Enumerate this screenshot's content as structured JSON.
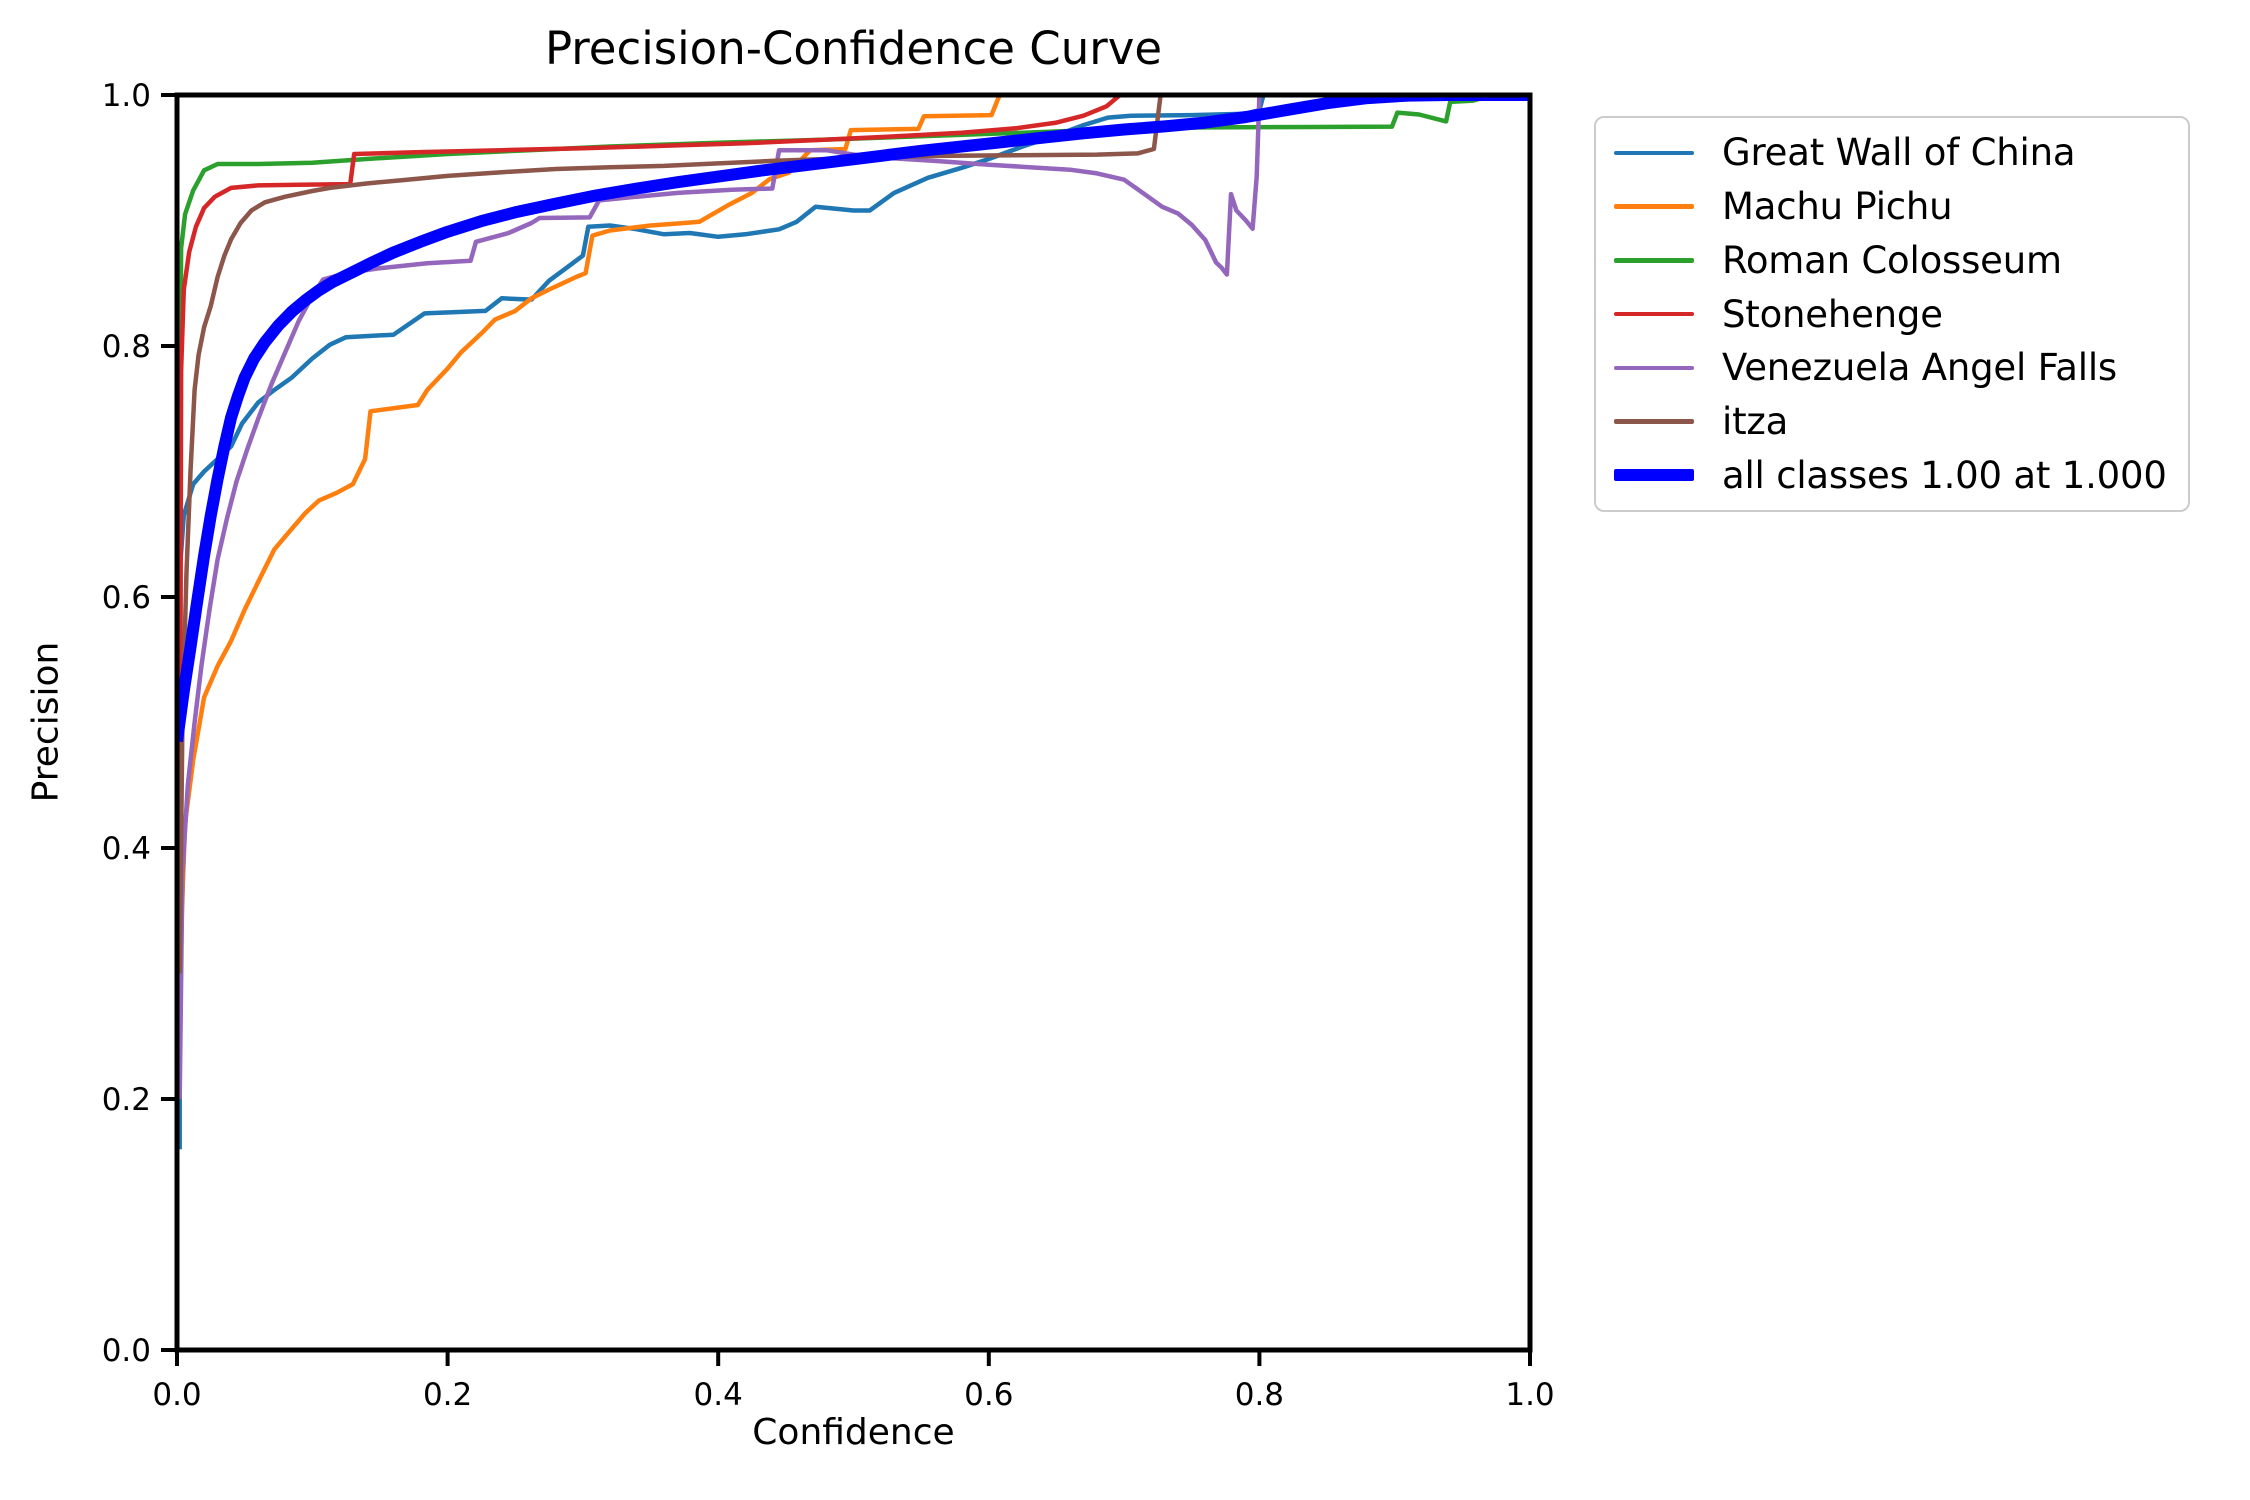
{
  "chart_data": {
    "type": "line",
    "title": "Precision-Confidence Curve",
    "xlabel": "Confidence",
    "ylabel": "Precision",
    "xlim": [
      0.0,
      1.0
    ],
    "ylim": [
      0.0,
      1.0
    ],
    "xticks": {
      "values": [
        0.0,
        0.2,
        0.4,
        0.6,
        0.8,
        1.0
      ],
      "labels": [
        "0.0",
        "0.2",
        "0.4",
        "0.6",
        "0.8",
        "1.0"
      ]
    },
    "yticks": {
      "values": [
        0.0,
        0.2,
        0.4,
        0.6,
        0.8,
        1.0
      ],
      "labels": [
        "0.0",
        "0.2",
        "0.4",
        "0.6",
        "0.8",
        "1.0"
      ]
    },
    "grid": false,
    "legend_position": "outside-upper-right",
    "axis_color": "#000000",
    "series": [
      {
        "name": "Great Wall of China",
        "color": "#1f77b4",
        "linewidth": 4.5,
        "thick": false,
        "points": [
          [
            0.002,
            0.16
          ],
          [
            0.002,
            0.62
          ],
          [
            0.005,
            0.665
          ],
          [
            0.012,
            0.69
          ],
          [
            0.02,
            0.7
          ],
          [
            0.03,
            0.71
          ],
          [
            0.04,
            0.72
          ],
          [
            0.048,
            0.738
          ],
          [
            0.06,
            0.755
          ],
          [
            0.072,
            0.765
          ],
          [
            0.085,
            0.775
          ],
          [
            0.1,
            0.79
          ],
          [
            0.113,
            0.801
          ],
          [
            0.125,
            0.807
          ],
          [
            0.16,
            0.809
          ],
          [
            0.183,
            0.826
          ],
          [
            0.228,
            0.828
          ],
          [
            0.24,
            0.838
          ],
          [
            0.262,
            0.837
          ],
          [
            0.275,
            0.852
          ],
          [
            0.29,
            0.864
          ],
          [
            0.3,
            0.872
          ],
          [
            0.304,
            0.895
          ],
          [
            0.32,
            0.896
          ],
          [
            0.34,
            0.893
          ],
          [
            0.36,
            0.889
          ],
          [
            0.379,
            0.89
          ],
          [
            0.4,
            0.887
          ],
          [
            0.42,
            0.889
          ],
          [
            0.445,
            0.893
          ],
          [
            0.458,
            0.899
          ],
          [
            0.472,
            0.911
          ],
          [
            0.5,
            0.908
          ],
          [
            0.512,
            0.908
          ],
          [
            0.53,
            0.922
          ],
          [
            0.555,
            0.934
          ],
          [
            0.58,
            0.942
          ],
          [
            0.6,
            0.949
          ],
          [
            0.625,
            0.959
          ],
          [
            0.65,
            0.968
          ],
          [
            0.67,
            0.976
          ],
          [
            0.688,
            0.982
          ],
          [
            0.705,
            0.9835
          ],
          [
            0.75,
            0.984
          ],
          [
            0.79,
            0.985
          ],
          [
            0.8,
            0.988
          ],
          [
            0.803,
            1.0
          ]
        ]
      },
      {
        "name": "Machu Pichu",
        "color": "#ff7f0e",
        "linewidth": 4.5,
        "thick": false,
        "points": [
          [
            0.002,
            0.3
          ],
          [
            0.006,
            0.42
          ],
          [
            0.012,
            0.47
          ],
          [
            0.02,
            0.52
          ],
          [
            0.03,
            0.545
          ],
          [
            0.04,
            0.565
          ],
          [
            0.05,
            0.59
          ],
          [
            0.06,
            0.612
          ],
          [
            0.072,
            0.638
          ],
          [
            0.083,
            0.652
          ],
          [
            0.095,
            0.667
          ],
          [
            0.105,
            0.677
          ],
          [
            0.118,
            0.683
          ],
          [
            0.13,
            0.69
          ],
          [
            0.139,
            0.71
          ],
          [
            0.143,
            0.748
          ],
          [
            0.178,
            0.753
          ],
          [
            0.185,
            0.765
          ],
          [
            0.2,
            0.782
          ],
          [
            0.21,
            0.795
          ],
          [
            0.225,
            0.81
          ],
          [
            0.235,
            0.821
          ],
          [
            0.25,
            0.828
          ],
          [
            0.262,
            0.838
          ],
          [
            0.275,
            0.845
          ],
          [
            0.285,
            0.85
          ],
          [
            0.295,
            0.855
          ],
          [
            0.302,
            0.858
          ],
          [
            0.307,
            0.888
          ],
          [
            0.32,
            0.892
          ],
          [
            0.35,
            0.896
          ],
          [
            0.375,
            0.898
          ],
          [
            0.386,
            0.899
          ],
          [
            0.407,
            0.912
          ],
          [
            0.425,
            0.922
          ],
          [
            0.438,
            0.933
          ],
          [
            0.452,
            0.938
          ],
          [
            0.468,
            0.956
          ],
          [
            0.494,
            0.957
          ],
          [
            0.498,
            0.972
          ],
          [
            0.548,
            0.973
          ],
          [
            0.552,
            0.983
          ],
          [
            0.602,
            0.984
          ],
          [
            0.608,
            1.0
          ],
          [
            0.67,
            1.0
          ]
        ]
      },
      {
        "name": "Roman Colosseum",
        "color": "#2ca02c",
        "linewidth": 4.5,
        "thick": false,
        "points": [
          [
            0.002,
            0.7
          ],
          [
            0.003,
            0.878
          ],
          [
            0.006,
            0.905
          ],
          [
            0.012,
            0.924
          ],
          [
            0.02,
            0.94
          ],
          [
            0.03,
            0.945
          ],
          [
            0.06,
            0.945
          ],
          [
            0.1,
            0.946
          ],
          [
            0.14,
            0.949
          ],
          [
            0.2,
            0.953
          ],
          [
            0.26,
            0.956
          ],
          [
            0.32,
            0.959
          ],
          [
            0.4,
            0.962
          ],
          [
            0.48,
            0.9645
          ],
          [
            0.56,
            0.9675
          ],
          [
            0.64,
            0.9705
          ],
          [
            0.7,
            0.973
          ],
          [
            0.76,
            0.9742
          ],
          [
            0.84,
            0.9745
          ],
          [
            0.898,
            0.9748
          ],
          [
            0.902,
            0.986
          ],
          [
            0.918,
            0.9845
          ],
          [
            0.938,
            0.979
          ],
          [
            0.941,
            0.9945
          ],
          [
            0.958,
            0.9955
          ],
          [
            0.972,
            1.0
          ],
          [
            0.99,
            1.0
          ]
        ]
      },
      {
        "name": "Stonehenge",
        "color": "#d62728",
        "linewidth": 4.5,
        "thick": false,
        "points": [
          [
            0.002,
            0.25
          ],
          [
            0.003,
            0.78
          ],
          [
            0.005,
            0.845
          ],
          [
            0.009,
            0.875
          ],
          [
            0.014,
            0.895
          ],
          [
            0.02,
            0.91
          ],
          [
            0.028,
            0.919
          ],
          [
            0.04,
            0.926
          ],
          [
            0.06,
            0.928
          ],
          [
            0.09,
            0.9285
          ],
          [
            0.128,
            0.929
          ],
          [
            0.131,
            0.953
          ],
          [
            0.18,
            0.9545
          ],
          [
            0.24,
            0.956
          ],
          [
            0.3,
            0.9575
          ],
          [
            0.36,
            0.9595
          ],
          [
            0.42,
            0.9615
          ],
          [
            0.48,
            0.9645
          ],
          [
            0.53,
            0.967
          ],
          [
            0.58,
            0.97
          ],
          [
            0.62,
            0.9735
          ],
          [
            0.65,
            0.978
          ],
          [
            0.67,
            0.9835
          ],
          [
            0.687,
            0.991
          ],
          [
            0.697,
            1.0
          ],
          [
            0.735,
            1.0
          ]
        ]
      },
      {
        "name": "Venezuela Angel Falls",
        "color": "#9467bd",
        "linewidth": 4.5,
        "thick": false,
        "points": [
          [
            0.002,
            0.2
          ],
          [
            0.004,
            0.38
          ],
          [
            0.008,
            0.45
          ],
          [
            0.013,
            0.5
          ],
          [
            0.018,
            0.545
          ],
          [
            0.024,
            0.59
          ],
          [
            0.03,
            0.63
          ],
          [
            0.037,
            0.663
          ],
          [
            0.044,
            0.692
          ],
          [
            0.052,
            0.718
          ],
          [
            0.06,
            0.742
          ],
          [
            0.07,
            0.77
          ],
          [
            0.08,
            0.795
          ],
          [
            0.09,
            0.82
          ],
          [
            0.1,
            0.84
          ],
          [
            0.108,
            0.853
          ],
          [
            0.125,
            0.858
          ],
          [
            0.15,
            0.862
          ],
          [
            0.185,
            0.866
          ],
          [
            0.217,
            0.868
          ],
          [
            0.221,
            0.883
          ],
          [
            0.245,
            0.89
          ],
          [
            0.262,
            0.898
          ],
          [
            0.268,
            0.902
          ],
          [
            0.305,
            0.9025
          ],
          [
            0.312,
            0.916
          ],
          [
            0.34,
            0.919
          ],
          [
            0.37,
            0.922
          ],
          [
            0.41,
            0.9245
          ],
          [
            0.44,
            0.9255
          ],
          [
            0.445,
            0.956
          ],
          [
            0.48,
            0.956
          ],
          [
            0.5,
            0.9525
          ],
          [
            0.53,
            0.9495
          ],
          [
            0.56,
            0.9475
          ],
          [
            0.6,
            0.9445
          ],
          [
            0.63,
            0.9425
          ],
          [
            0.66,
            0.9405
          ],
          [
            0.68,
            0.9375
          ],
          [
            0.7,
            0.9325
          ],
          [
            0.715,
            0.921
          ],
          [
            0.728,
            0.911
          ],
          [
            0.74,
            0.9055
          ],
          [
            0.75,
            0.8965
          ],
          [
            0.76,
            0.8845
          ],
          [
            0.768,
            0.8665
          ],
          [
            0.772,
            0.8625
          ],
          [
            0.776,
            0.857
          ],
          [
            0.779,
            0.921
          ],
          [
            0.783,
            0.908
          ],
          [
            0.79,
            0.9
          ],
          [
            0.795,
            0.8935
          ],
          [
            0.798,
            0.935
          ],
          [
            0.8,
            1.0
          ]
        ]
      },
      {
        "name": "itza",
        "color": "#8c564b",
        "linewidth": 4.5,
        "thick": false,
        "points": [
          [
            0.002,
            0.3
          ],
          [
            0.004,
            0.5
          ],
          [
            0.007,
            0.62
          ],
          [
            0.01,
            0.7
          ],
          [
            0.013,
            0.765
          ],
          [
            0.016,
            0.793
          ],
          [
            0.02,
            0.815
          ],
          [
            0.025,
            0.832
          ],
          [
            0.03,
            0.855
          ],
          [
            0.035,
            0.872
          ],
          [
            0.04,
            0.885
          ],
          [
            0.047,
            0.898
          ],
          [
            0.055,
            0.908
          ],
          [
            0.065,
            0.9145
          ],
          [
            0.08,
            0.919
          ],
          [
            0.1,
            0.9235
          ],
          [
            0.113,
            0.926
          ],
          [
            0.14,
            0.9295
          ],
          [
            0.17,
            0.9325
          ],
          [
            0.2,
            0.9355
          ],
          [
            0.24,
            0.9385
          ],
          [
            0.28,
            0.941
          ],
          [
            0.32,
            0.9425
          ],
          [
            0.36,
            0.9435
          ],
          [
            0.4,
            0.9455
          ],
          [
            0.44,
            0.9475
          ],
          [
            0.48,
            0.949
          ],
          [
            0.52,
            0.9505
          ],
          [
            0.56,
            0.9515
          ],
          [
            0.62,
            0.952
          ],
          [
            0.68,
            0.9525
          ],
          [
            0.71,
            0.9535
          ],
          [
            0.722,
            0.957
          ],
          [
            0.727,
            1.0
          ]
        ]
      },
      {
        "name": "all classes 1.00 at 1.000",
        "color": "#0000ff",
        "linewidth": 12,
        "thick": true,
        "points": [
          [
            0.0,
            0.485
          ],
          [
            0.005,
            0.525
          ],
          [
            0.01,
            0.56
          ],
          [
            0.015,
            0.597
          ],
          [
            0.02,
            0.633
          ],
          [
            0.025,
            0.665
          ],
          [
            0.03,
            0.694
          ],
          [
            0.035,
            0.72
          ],
          [
            0.04,
            0.743
          ],
          [
            0.045,
            0.76
          ],
          [
            0.05,
            0.775
          ],
          [
            0.057,
            0.79
          ],
          [
            0.065,
            0.803
          ],
          [
            0.075,
            0.8165
          ],
          [
            0.085,
            0.8275
          ],
          [
            0.095,
            0.8365
          ],
          [
            0.105,
            0.8445
          ],
          [
            0.115,
            0.851
          ],
          [
            0.13,
            0.859
          ],
          [
            0.145,
            0.867
          ],
          [
            0.16,
            0.8745
          ],
          [
            0.18,
            0.883
          ],
          [
            0.2,
            0.891
          ],
          [
            0.225,
            0.8995
          ],
          [
            0.25,
            0.9065
          ],
          [
            0.28,
            0.9135
          ],
          [
            0.31,
            0.92
          ],
          [
            0.34,
            0.9255
          ],
          [
            0.37,
            0.9305
          ],
          [
            0.4,
            0.935
          ],
          [
            0.43,
            0.9395
          ],
          [
            0.46,
            0.9435
          ],
          [
            0.49,
            0.9475
          ],
          [
            0.52,
            0.9515
          ],
          [
            0.55,
            0.9555
          ],
          [
            0.58,
            0.959
          ],
          [
            0.61,
            0.9625
          ],
          [
            0.64,
            0.966
          ],
          [
            0.67,
            0.9695
          ],
          [
            0.7,
            0.9725
          ],
          [
            0.73,
            0.975
          ],
          [
            0.76,
            0.978
          ],
          [
            0.79,
            0.9825
          ],
          [
            0.82,
            0.988
          ],
          [
            0.85,
            0.9935
          ],
          [
            0.88,
            0.9975
          ],
          [
            0.91,
            0.9995
          ],
          [
            0.94,
            1.0
          ],
          [
            1.0,
            1.0
          ]
        ]
      }
    ]
  }
}
